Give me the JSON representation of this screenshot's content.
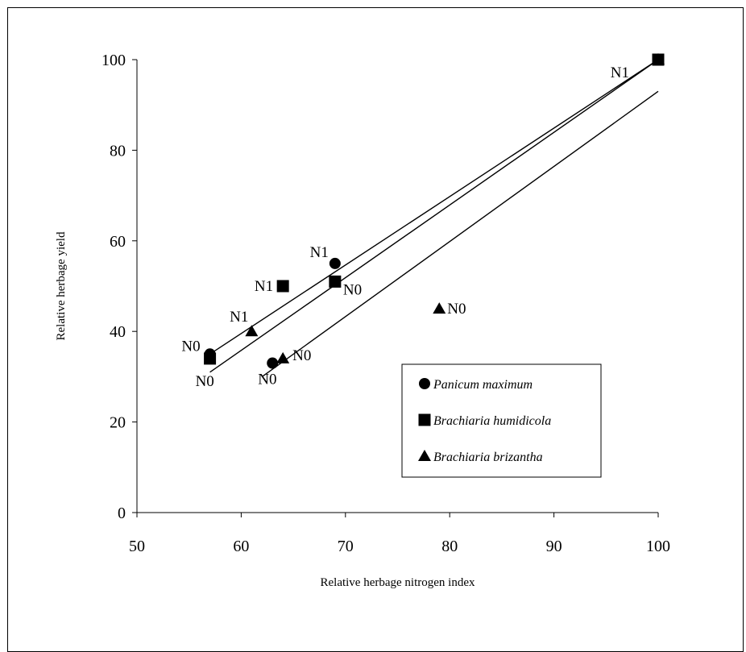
{
  "chart_data": {
    "type": "scatter",
    "title": "",
    "xlabel": "Relative herbage nitrogen index",
    "ylabel": "Relative herbage yield",
    "xlim": [
      50,
      100
    ],
    "ylim": [
      0,
      100
    ],
    "x_ticks": [
      50,
      60,
      70,
      80,
      90,
      100
    ],
    "y_ticks": [
      0,
      20,
      40,
      60,
      80,
      100
    ],
    "grid": false,
    "legend_position": "bottom-right",
    "series": [
      {
        "name": "Panicum maximum",
        "marker": "circle",
        "points": [
          {
            "x": 57,
            "y": 35,
            "label": "N0"
          },
          {
            "x": 63,
            "y": 33,
            "label": "N0"
          },
          {
            "x": 69,
            "y": 55,
            "label": "N1"
          },
          {
            "x": 100,
            "y": 100,
            "label": "N1"
          }
        ],
        "fit_line": {
          "x_start": 57,
          "y_start": 35,
          "x_end": 100,
          "y_end": 100
        }
      },
      {
        "name": "Brachiaria humidicola",
        "marker": "square",
        "points": [
          {
            "x": 57,
            "y": 34,
            "label": "N0"
          },
          {
            "x": 64,
            "y": 50,
            "label": "N1"
          },
          {
            "x": 69,
            "y": 51,
            "label": "N0"
          },
          {
            "x": 100,
            "y": 100,
            "label": ""
          }
        ],
        "fit_line": {
          "x_start": 57,
          "y_start": 31,
          "x_end": 100,
          "y_end": 100
        }
      },
      {
        "name": "Brachiaria brizantha",
        "marker": "triangle",
        "points": [
          {
            "x": 61,
            "y": 40,
            "label": "N1"
          },
          {
            "x": 64,
            "y": 34,
            "label": "N0"
          },
          {
            "x": 79,
            "y": 45,
            "label": "N0"
          },
          {
            "x": 100,
            "y": 100,
            "label": ""
          }
        ],
        "fit_line": {
          "x_start": 62,
          "y_start": 30,
          "x_end": 100,
          "y_end": 93
        }
      }
    ]
  }
}
